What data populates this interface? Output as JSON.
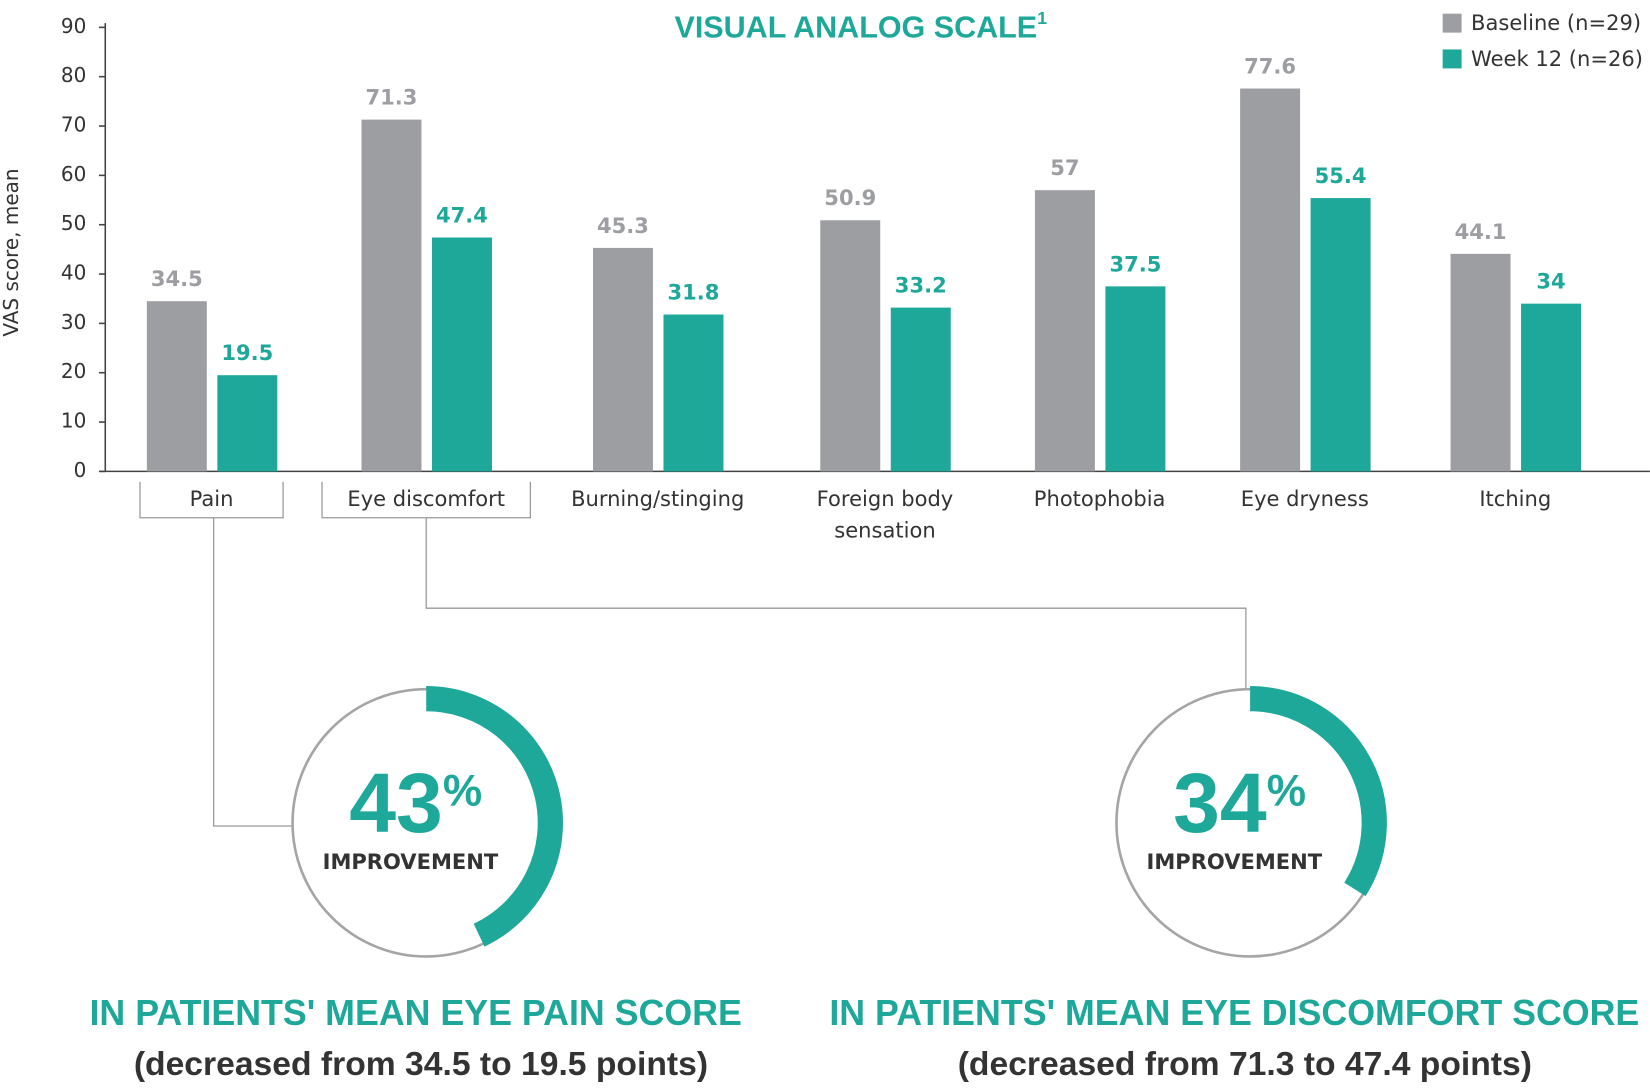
{
  "chart_data": {
    "type": "bar",
    "title": "VISUAL ANALOG SCALE",
    "title_superscript": "1",
    "y_label": "VAS score, mean",
    "categories": [
      "Pain",
      "Eye discomfort",
      "Burning/stinging",
      "Foreign body sensation",
      "Photophobia",
      "Eye dryness",
      "Itching"
    ],
    "series": [
      {
        "name": "Baseline (n=29)",
        "color": "#9d9ea2",
        "values": [
          34.5,
          71.3,
          45.3,
          50.9,
          57,
          77.6,
          44.1
        ]
      },
      {
        "name": "Week 12 (n=26)",
        "color": "#1ea89a",
        "values": [
          19.5,
          47.4,
          31.8,
          33.2,
          37.5,
          55.4,
          34
        ]
      }
    ],
    "ylim": [
      0,
      90
    ],
    "yticks": [
      0,
      10,
      20,
      30,
      40,
      50,
      60,
      70,
      80,
      90
    ],
    "legend": "top-right"
  },
  "callouts": [
    {
      "value": 43,
      "unit": "%",
      "label": "IMPROVEMENT",
      "headline": "IN PATIENTS' MEAN EYE PAIN SCORE",
      "detail": "(decreased from 34.5 to 19.5 points)"
    },
    {
      "value": 34,
      "unit": "%",
      "label": "IMPROVEMENT",
      "headline": "IN PATIENTS' MEAN EYE DISCOMFORT SCORE",
      "detail": "(decreased from 71.3 to 47.4 points)"
    }
  ]
}
